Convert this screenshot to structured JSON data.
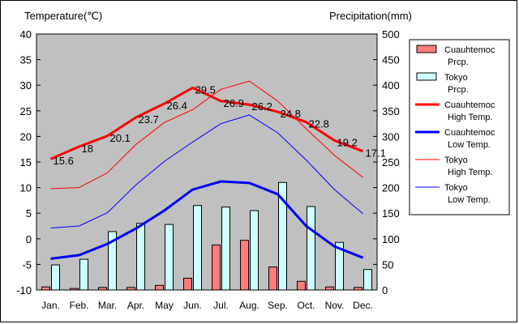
{
  "chart_data": {
    "type": "bar",
    "left_axis_label": "Temperature(℃)",
    "right_axis_label": "Precipitation(mm)",
    "categories": [
      "Jan.",
      "Feb.",
      "Mar.",
      "Apr.",
      "May",
      "Jun.",
      "Jul.",
      "Aug.",
      "Sep.",
      "Oct.",
      "Nov.",
      "Dec."
    ],
    "y_left": {
      "min": -10,
      "max": 40,
      "ticks": [
        -10,
        -5,
        0,
        5,
        10,
        15,
        20,
        25,
        30,
        35,
        40
      ]
    },
    "y_right": {
      "min": 0,
      "max": 500,
      "ticks": [
        0,
        50,
        100,
        150,
        200,
        250,
        300,
        350,
        400,
        450,
        500
      ]
    },
    "grid": false,
    "legend_position": "right",
    "bar_series": [
      {
        "name": "Cuauhtemoc Prcp.",
        "color": "#ff7c7c",
        "values": [
          6,
          3,
          5,
          5,
          9,
          23,
          88,
          97,
          45,
          17,
          6,
          5
        ]
      },
      {
        "name": "Tokyo Prcp.",
        "color": "#ccffff",
        "values": [
          49,
          60,
          114,
          130,
          128,
          165,
          162,
          155,
          210,
          163,
          93,
          40
        ]
      }
    ],
    "line_series": [
      {
        "name": "Cuauhtemoc High Temp.",
        "color": "#ff0000",
        "width": 3,
        "values": [
          15.6,
          18,
          20.1,
          23.7,
          26.4,
          29.5,
          26.9,
          26.2,
          24.8,
          22.8,
          19.2,
          17.1
        ]
      },
      {
        "name": "Cuauhtemoc Low Temp.",
        "color": "#0000ff",
        "width": 3,
        "values": [
          -3.9,
          -3.2,
          -1,
          2,
          5.5,
          9.6,
          11.2,
          10.9,
          8.7,
          2.5,
          -1.5,
          -3.7
        ]
      },
      {
        "name": "Tokyo High Temp.",
        "color": "#ff0000",
        "width": 1,
        "values": [
          9.8,
          10,
          12.9,
          18.4,
          22.7,
          25.2,
          29.2,
          30.8,
          26.9,
          21.5,
          16.3,
          12
        ]
      },
      {
        "name": "Tokyo Low Temp.",
        "color": "#0000ff",
        "width": 1,
        "values": [
          2.1,
          2.5,
          5.1,
          10.5,
          15.1,
          18.9,
          22.5,
          24.2,
          20.7,
          15.4,
          9.6,
          4.9
        ]
      }
    ],
    "data_labels": [
      "15.6",
      "18",
      "20.1",
      "23.7",
      "26.4",
      "29.5",
      "26.9",
      "26.2",
      "24.8",
      "22.8",
      "19.2",
      "17.1"
    ],
    "legend": [
      {
        "line1": "Cuauhtemoc",
        "line2": "Prcp.",
        "kind": "box",
        "color": "#ff7c7c"
      },
      {
        "line1": "Tokyo",
        "line2": "Prcp.",
        "kind": "box",
        "color": "#ccffff"
      },
      {
        "line1": "Cuauhtemoc",
        "line2": "High Temp.",
        "kind": "line",
        "color": "#ff0000",
        "width": 3
      },
      {
        "line1": "Cuauhtemoc",
        "line2": "Low Temp.",
        "kind": "line",
        "color": "#0000ff",
        "width": 3
      },
      {
        "line1": "Tokyo",
        "line2": "High Temp.",
        "kind": "line",
        "color": "#ff0000",
        "width": 1
      },
      {
        "line1": "Tokyo",
        "line2": "Low Temp.",
        "kind": "line",
        "color": "#0000ff",
        "width": 1
      }
    ],
    "plot_background": "#c0c0c0"
  }
}
